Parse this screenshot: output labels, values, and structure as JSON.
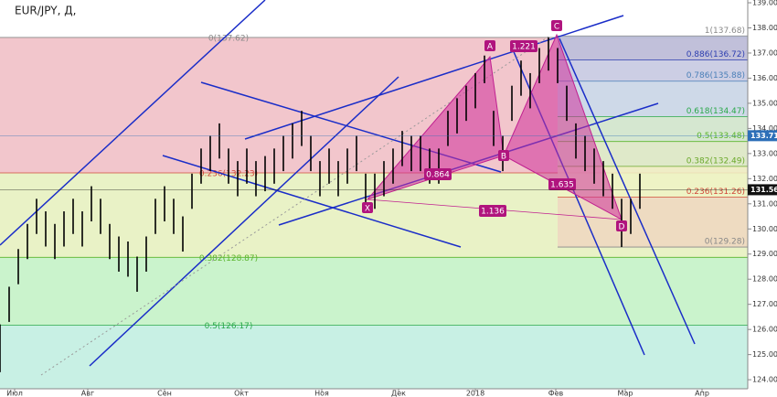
{
  "chart_data": {
    "type": "ohlc",
    "title": "EUR/JPY, Д,",
    "series_color": "#000000",
    "xlim": [
      0,
      204.5
    ],
    "xticks": [
      {
        "value": 4,
        "label": "Июл"
      },
      {
        "value": 24,
        "label": "Авг"
      },
      {
        "value": 45,
        "label": "Сен"
      },
      {
        "value": 66,
        "label": "Окт"
      },
      {
        "value": 88,
        "label": "Ноя"
      },
      {
        "value": 109,
        "label": "Дек"
      },
      {
        "value": 130,
        "label": "2018"
      },
      {
        "value": 152,
        "label": "Фев"
      },
      {
        "value": 171,
        "label": "Мар"
      },
      {
        "value": 192,
        "label": "Апр"
      }
    ],
    "ylim": [
      123.64,
      139.11
    ],
    "yticks": [
      {
        "value": 124,
        "label": "124.00"
      },
      {
        "value": 125,
        "label": "125.00"
      },
      {
        "value": 126,
        "label": "126.00"
      },
      {
        "value": 127,
        "label": "127.00"
      },
      {
        "value": 128,
        "label": "128.00"
      },
      {
        "value": 129,
        "label": "129.00"
      },
      {
        "value": 130,
        "label": "130.00"
      },
      {
        "value": 131,
        "label": "131.00"
      },
      {
        "value": 132,
        "label": "132.00"
      },
      {
        "value": 133,
        "label": "133.00"
      },
      {
        "value": 134,
        "label": "134.00"
      },
      {
        "value": 135,
        "label": "135.00"
      },
      {
        "value": 136,
        "label": "136.00"
      },
      {
        "value": 137,
        "label": "137.00"
      },
      {
        "value": 138,
        "label": "138.00"
      },
      {
        "value": 139,
        "label": "139.00"
      }
    ],
    "x": [
      0,
      2.5,
      5,
      7.5,
      10,
      12.5,
      15,
      17.5,
      20,
      22.5,
      25,
      27.5,
      30,
      32.5,
      35,
      37.5,
      40,
      42.5,
      45,
      47.5,
      50,
      52.5,
      55,
      57.5,
      60,
      62.5,
      65,
      67.5,
      70,
      72.5,
      75,
      77.5,
      80,
      82.5,
      85,
      87.5,
      90,
      92.5,
      95,
      97.5,
      100,
      102.5,
      105,
      107.5,
      110,
      112.5,
      115,
      117.5,
      120,
      122.5,
      125,
      127.5,
      130,
      132.5,
      135,
      137.5,
      140,
      142.5,
      145,
      147.5,
      150,
      152.5,
      155,
      157.5,
      160,
      162.5,
      165,
      167.5,
      170,
      172.5,
      175
    ],
    "high": [
      126.2,
      127.7,
      129.2,
      130.2,
      131.2,
      130.7,
      130.2,
      130.7,
      131.2,
      130.7,
      131.7,
      131.2,
      130.2,
      129.7,
      129.5,
      128.9,
      129.7,
      131.2,
      131.7,
      131.2,
      130.5,
      132.2,
      133.2,
      133.7,
      134.2,
      133.2,
      132.7,
      133.2,
      132.7,
      132.9,
      133.2,
      133.7,
      134.2,
      134.7,
      133.7,
      132.7,
      133.2,
      132.7,
      133.2,
      133.7,
      132.2,
      132.2,
      132.7,
      133.2,
      133.9,
      133.7,
      133.7,
      133.2,
      133.2,
      134.7,
      135.2,
      135.7,
      136.2,
      136.9,
      134.7,
      133.7,
      135.7,
      136.7,
      136.2,
      137.2,
      137.62,
      137.2,
      135.7,
      134.2,
      133.7,
      133.2,
      132.7,
      132.2,
      131.2,
      131.2,
      132.2
    ],
    "low": [
      124.3,
      126.3,
      127.8,
      128.8,
      129.8,
      129.3,
      128.8,
      129.3,
      129.8,
      129.3,
      130.3,
      129.8,
      128.8,
      128.3,
      128.1,
      127.5,
      128.3,
      129.8,
      130.3,
      129.8,
      129.1,
      130.8,
      131.8,
      132.3,
      132.8,
      131.8,
      131.3,
      131.8,
      131.3,
      131.5,
      131.8,
      132.3,
      132.8,
      133.3,
      132.3,
      131.3,
      131.8,
      131.3,
      131.8,
      132.3,
      130.8,
      130.8,
      131.3,
      131.8,
      132.5,
      132.3,
      132.3,
      131.8,
      131.8,
      133.3,
      133.8,
      134.3,
      134.8,
      135.8,
      133.3,
      132.3,
      134.3,
      135.3,
      134.8,
      135.8,
      136.3,
      135.8,
      134.3,
      132.8,
      132.3,
      131.8,
      131.3,
      130.8,
      129.28,
      129.8,
      130.8
    ],
    "fib_left": [
      {
        "label": "0(137.62)",
        "value": 137.62,
        "color": "#888888",
        "fill": "#f2c6cc"
      },
      {
        "label": "0.236(132.23)",
        "value": 132.23,
        "color": "#d04a3a",
        "fill": "#e9f2c6"
      },
      {
        "label": "0.382(128.87)",
        "value": 128.87,
        "color": "#5bb52c",
        "fill": "#caf3cc"
      },
      {
        "label": "0.5(126.17)",
        "value": 126.17,
        "color": "#2aa84a",
        "fill": "#c8f0e4"
      }
    ],
    "fib_right": [
      {
        "label": "1(137.68)",
        "value": 137.68,
        "color": "#888888",
        "fill": "#b8bedc"
      },
      {
        "label": "0.886(136.72)",
        "value": 136.72,
        "color": "#2d3eb0",
        "fill": "#c6cfe8"
      },
      {
        "label": "0.786(135.88)",
        "value": 135.88,
        "color": "#4a7fb8",
        "fill": "#c8dcec"
      },
      {
        "label": "0.618(134.47)",
        "value": 134.47,
        "color": "#2aa84a",
        "fill": "#d0ecd0"
      },
      {
        "label": "0.5(133.48)",
        "value": 133.48,
        "color": "#5bb52c",
        "fill": "#dcefc8"
      },
      {
        "label": "0.382(132.49)",
        "value": 132.49,
        "color": "#6aa82a",
        "fill": "#eef3c4"
      },
      {
        "label": "0.236(131.26)",
        "value": 131.26,
        "color": "#d04a3a",
        "fill": "#eed7c0"
      },
      {
        "label": "0(129.28)",
        "value": 129.28,
        "color": "#888888",
        "fill": "none"
      }
    ],
    "price_labels": [
      {
        "label": "133.71",
        "value": 133.71,
        "color": "#2d6fb8"
      },
      {
        "label": "131.56",
        "value": 131.56,
        "color": "#111111"
      }
    ],
    "points": [
      "X",
      "A",
      "B",
      "C",
      "D"
    ],
    "ratios": [
      "1.221",
      "0.864",
      "1.635",
      "1.136"
    ]
  }
}
